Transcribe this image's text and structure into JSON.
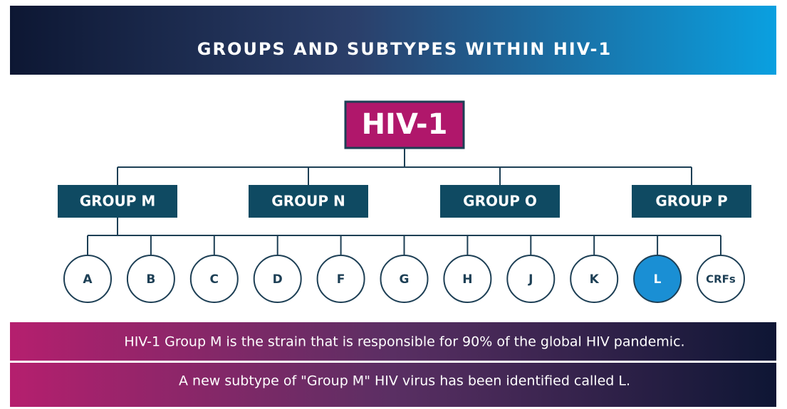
{
  "header": {
    "title": "GROUPS AND SUBTYPES WITHIN HIV-1"
  },
  "root": {
    "label": "HIV-1"
  },
  "groups": [
    "GROUP M",
    "GROUP N",
    "GROUP O",
    "GROUP P"
  ],
  "subtypes": [
    "A",
    "B",
    "C",
    "D",
    "F",
    "G",
    "H",
    "J",
    "K",
    "L",
    "CRFs"
  ],
  "notes": [
    "HIV-1 Group M is the strain that is responsible for 90% of the global HIV pandemic.",
    "A new subtype of \"Group M\" HIV virus has been identified called L."
  ]
}
